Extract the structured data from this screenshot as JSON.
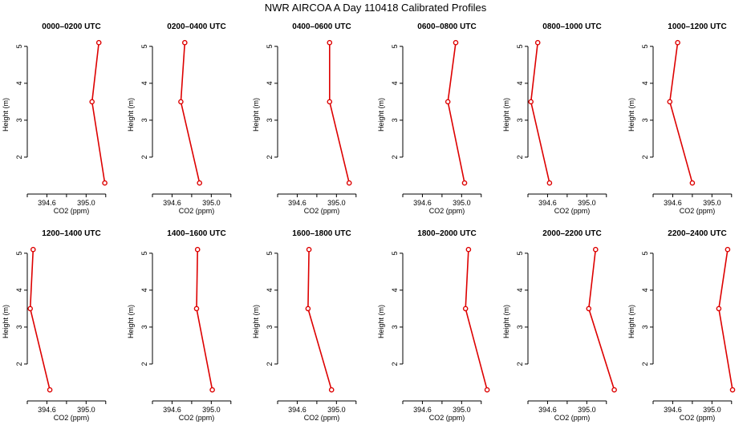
{
  "title": "NWR AIRCOA A  Day 110418  Calibrated Profiles",
  "colors": {
    "series": "#dd0000",
    "axis": "#000000",
    "background": "#ffffff"
  },
  "chart_data": [
    {
      "type": "line",
      "title": "0000–0200 UTC",
      "xlabel": "CO2 (ppm)",
      "ylabel": "Height (m)",
      "xlim": [
        394.4,
        395.3
      ],
      "ylim": [
        1.0,
        5.3
      ],
      "xticks": [
        "394.6",
        "395.0"
      ],
      "xtick_values": [
        394.6,
        395.0
      ],
      "yticks": [
        "2",
        "3",
        "4",
        "5"
      ],
      "ytick_values": [
        2,
        3,
        4,
        5
      ],
      "series": [
        {
          "name": "CO2",
          "points": [
            {
              "x": 395.13,
              "y": 5.1
            },
            {
              "x": 395.06,
              "y": 3.5
            },
            {
              "x": 395.19,
              "y": 1.3
            }
          ]
        }
      ]
    },
    {
      "type": "line",
      "title": "0200–0400 UTC",
      "xlabel": "CO2 (ppm)",
      "ylabel": "Height (m)",
      "xlim": [
        394.4,
        395.3
      ],
      "ylim": [
        1.0,
        5.3
      ],
      "xticks": [
        "394.6",
        "395.0"
      ],
      "xtick_values": [
        394.6,
        395.0
      ],
      "yticks": [
        "2",
        "3",
        "4",
        "5"
      ],
      "ytick_values": [
        2,
        3,
        4,
        5
      ],
      "series": [
        {
          "name": "CO2",
          "points": [
            {
              "x": 394.73,
              "y": 5.1
            },
            {
              "x": 394.69,
              "y": 3.5
            },
            {
              "x": 394.88,
              "y": 1.3
            }
          ]
        }
      ]
    },
    {
      "type": "line",
      "title": "0400–0600 UTC",
      "xlabel": "CO2 (ppm)",
      "ylabel": "Height (m)",
      "xlim": [
        394.4,
        395.3
      ],
      "ylim": [
        1.0,
        5.3
      ],
      "xticks": [
        "394.6",
        "395.0"
      ],
      "xtick_values": [
        394.6,
        395.0
      ],
      "yticks": [
        "2",
        "3",
        "4",
        "5"
      ],
      "ytick_values": [
        2,
        3,
        4,
        5
      ],
      "series": [
        {
          "name": "CO2",
          "points": [
            {
              "x": 394.93,
              "y": 5.1
            },
            {
              "x": 394.93,
              "y": 3.5
            },
            {
              "x": 395.13,
              "y": 1.3
            }
          ]
        }
      ]
    },
    {
      "type": "line",
      "title": "0600–0800 UTC",
      "xlabel": "CO2 (ppm)",
      "ylabel": "Height (m)",
      "xlim": [
        394.4,
        395.3
      ],
      "ylim": [
        1.0,
        5.3
      ],
      "xticks": [
        "394.6",
        "395.0"
      ],
      "xtick_values": [
        394.6,
        395.0
      ],
      "yticks": [
        "2",
        "3",
        "4",
        "5"
      ],
      "ytick_values": [
        2,
        3,
        4,
        5
      ],
      "series": [
        {
          "name": "CO2",
          "points": [
            {
              "x": 394.94,
              "y": 5.1
            },
            {
              "x": 394.86,
              "y": 3.5
            },
            {
              "x": 395.03,
              "y": 1.3
            }
          ]
        }
      ]
    },
    {
      "type": "line",
      "title": "0800–1000 UTC",
      "xlabel": "CO2 (ppm)",
      "ylabel": "Height (m)",
      "xlim": [
        394.4,
        395.3
      ],
      "ylim": [
        1.0,
        5.3
      ],
      "xticks": [
        "394.6",
        "395.0"
      ],
      "xtick_values": [
        394.6,
        395.0
      ],
      "yticks": [
        "2",
        "3",
        "4",
        "5"
      ],
      "ytick_values": [
        2,
        3,
        4,
        5
      ],
      "series": [
        {
          "name": "CO2",
          "points": [
            {
              "x": 394.5,
              "y": 5.1
            },
            {
              "x": 394.43,
              "y": 3.5
            },
            {
              "x": 394.62,
              "y": 1.3
            }
          ]
        }
      ]
    },
    {
      "type": "line",
      "title": "1000–1200 UTC",
      "xlabel": "CO2 (ppm)",
      "ylabel": "Height (m)",
      "xlim": [
        394.4,
        395.3
      ],
      "ylim": [
        1.0,
        5.3
      ],
      "xticks": [
        "394.6",
        "395.0"
      ],
      "xtick_values": [
        394.6,
        395.0
      ],
      "yticks": [
        "2",
        "3",
        "4",
        "5"
      ],
      "ytick_values": [
        2,
        3,
        4,
        5
      ],
      "series": [
        {
          "name": "CO2",
          "points": [
            {
              "x": 394.65,
              "y": 5.1
            },
            {
              "x": 394.57,
              "y": 3.5
            },
            {
              "x": 394.8,
              "y": 1.3
            }
          ]
        }
      ]
    },
    {
      "type": "line",
      "title": "1200–1400 UTC",
      "xlabel": "CO2 (ppm)",
      "ylabel": "Height (m)",
      "xlim": [
        394.4,
        395.3
      ],
      "ylim": [
        1.0,
        5.3
      ],
      "xticks": [
        "394.6",
        "395.0"
      ],
      "xtick_values": [
        394.6,
        395.0
      ],
      "yticks": [
        "2",
        "3",
        "4",
        "5"
      ],
      "ytick_values": [
        2,
        3,
        4,
        5
      ],
      "series": [
        {
          "name": "CO2",
          "points": [
            {
              "x": 394.46,
              "y": 5.1
            },
            {
              "x": 394.43,
              "y": 3.5
            },
            {
              "x": 394.63,
              "y": 1.3
            }
          ]
        }
      ]
    },
    {
      "type": "line",
      "title": "1400–1600 UTC",
      "xlabel": "CO2 (ppm)",
      "ylabel": "Height (m)",
      "xlim": [
        394.4,
        395.3
      ],
      "ylim": [
        1.0,
        5.3
      ],
      "xticks": [
        "394.6",
        "395.0"
      ],
      "xtick_values": [
        394.6,
        395.0
      ],
      "yticks": [
        "2",
        "3",
        "4",
        "5"
      ],
      "ytick_values": [
        2,
        3,
        4,
        5
      ],
      "series": [
        {
          "name": "CO2",
          "points": [
            {
              "x": 394.86,
              "y": 5.1
            },
            {
              "x": 394.85,
              "y": 3.5
            },
            {
              "x": 395.01,
              "y": 1.3
            }
          ]
        }
      ]
    },
    {
      "type": "line",
      "title": "1600–1800 UTC",
      "xlabel": "CO2 (ppm)",
      "ylabel": "Height (m)",
      "xlim": [
        394.4,
        395.3
      ],
      "ylim": [
        1.0,
        5.3
      ],
      "xticks": [
        "394.6",
        "395.0"
      ],
      "xtick_values": [
        394.6,
        395.0
      ],
      "yticks": [
        "2",
        "3",
        "4",
        "5"
      ],
      "ytick_values": [
        2,
        3,
        4,
        5
      ],
      "series": [
        {
          "name": "CO2",
          "points": [
            {
              "x": 394.72,
              "y": 5.1
            },
            {
              "x": 394.71,
              "y": 3.5
            },
            {
              "x": 394.95,
              "y": 1.3
            }
          ]
        }
      ]
    },
    {
      "type": "line",
      "title": "1800–2000 UTC",
      "xlabel": "CO2 (ppm)",
      "ylabel": "Height (m)",
      "xlim": [
        394.4,
        395.3
      ],
      "ylim": [
        1.0,
        5.3
      ],
      "xticks": [
        "394.6",
        "395.0"
      ],
      "xtick_values": [
        394.6,
        395.0
      ],
      "yticks": [
        "2",
        "3",
        "4",
        "5"
      ],
      "ytick_values": [
        2,
        3,
        4,
        5
      ],
      "series": [
        {
          "name": "CO2",
          "points": [
            {
              "x": 395.07,
              "y": 5.1
            },
            {
              "x": 395.04,
              "y": 3.5
            },
            {
              "x": 395.26,
              "y": 1.3
            }
          ]
        }
      ]
    },
    {
      "type": "line",
      "title": "2000–2200 UTC",
      "xlabel": "CO2 (ppm)",
      "ylabel": "Height (m)",
      "xlim": [
        394.4,
        395.3
      ],
      "ylim": [
        1.0,
        5.3
      ],
      "xticks": [
        "394.6",
        "395.0"
      ],
      "xtick_values": [
        394.6,
        395.0
      ],
      "yticks": [
        "2",
        "3",
        "4",
        "5"
      ],
      "ytick_values": [
        2,
        3,
        4,
        5
      ],
      "series": [
        {
          "name": "CO2",
          "points": [
            {
              "x": 395.09,
              "y": 5.1
            },
            {
              "x": 395.02,
              "y": 3.5
            },
            {
              "x": 395.28,
              "y": 1.3
            }
          ]
        }
      ]
    },
    {
      "type": "line",
      "title": "2200–2400 UTC",
      "xlabel": "CO2 (ppm)",
      "ylabel": "Height (m)",
      "xlim": [
        394.4,
        395.3
      ],
      "ylim": [
        1.0,
        5.3
      ],
      "xticks": [
        "394.6",
        "395.0"
      ],
      "xtick_values": [
        394.6,
        395.0
      ],
      "yticks": [
        "2",
        "3",
        "4",
        "5"
      ],
      "ytick_values": [
        2,
        3,
        4,
        5
      ],
      "series": [
        {
          "name": "CO2",
          "points": [
            {
              "x": 395.16,
              "y": 5.1
            },
            {
              "x": 395.07,
              "y": 3.5
            },
            {
              "x": 395.21,
              "y": 1.3
            }
          ]
        }
      ]
    }
  ]
}
